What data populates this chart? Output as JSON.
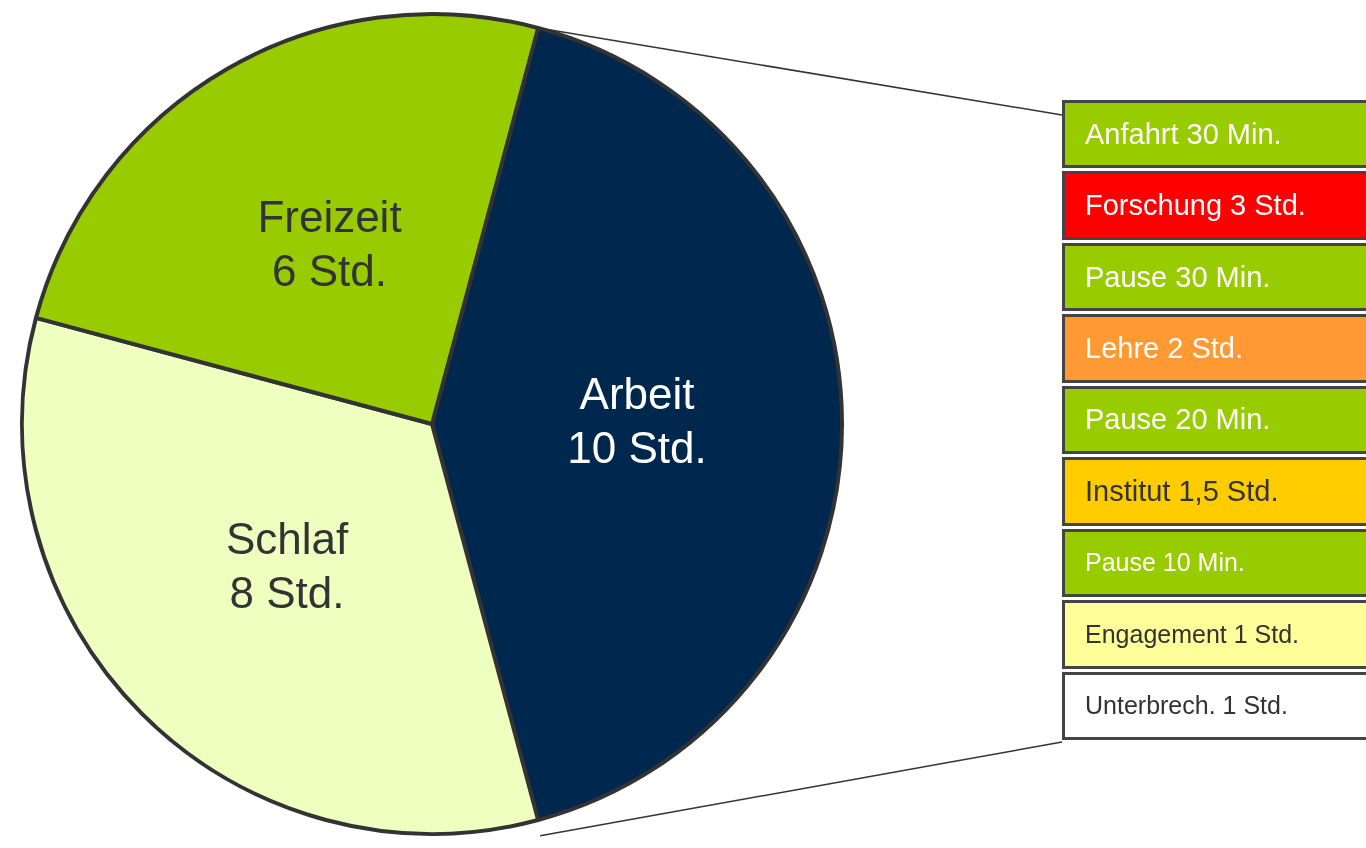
{
  "chart_data": [
    {
      "type": "pie",
      "categories": [
        "Arbeit",
        "Schlaf",
        "Freizeit"
      ],
      "values": [
        10,
        8,
        6
      ],
      "colors": [
        "#00274d",
        "#eeffc0",
        "#99cc00"
      ],
      "value_labels": [
        "10 Std.",
        "8 Std.",
        "6 Std."
      ]
    },
    {
      "type": "other",
      "categories": [
        "Anfahrt 30 Min.",
        "Forschung 3 Std.",
        "Pause 30 Min.",
        "Lehre 2 Std.",
        "Pause 20 Min.",
        "Institut 1,5 Std.",
        "Pause 10 Min.",
        "Engagement  1 Std.",
        "Unterbrech.  1 Std."
      ],
      "colors": [
        "#99cc00",
        "#ff0000",
        "#99cc00",
        "#ff9933",
        "#99cc00",
        "#ffcc00",
        "#99cc00",
        "#ffff99",
        "#ffffff"
      ]
    }
  ]
}
